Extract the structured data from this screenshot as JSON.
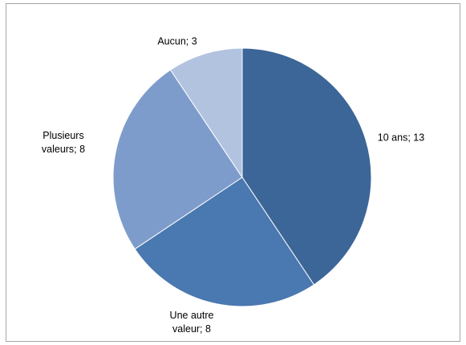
{
  "chart_data": {
    "type": "pie",
    "title": "",
    "slices": [
      {
        "label": "10 ans; 13",
        "label_lines": [
          "10 ans; 13"
        ],
        "name": "10 ans",
        "value": 13,
        "color": "#3c6697"
      },
      {
        "label": "Une autre valeur; 8",
        "label_lines": [
          "Une autre",
          "valeur; 8"
        ],
        "name": "Une autre valeur",
        "value": 8,
        "color": "#4a78b0"
      },
      {
        "label": "Plusieurs valeurs; 8",
        "label_lines": [
          "Plusieurs",
          "valeurs; 8"
        ],
        "name": "Plusieurs valeurs",
        "value": 8,
        "color": "#7e9ccb"
      },
      {
        "label": "Aucun; 3",
        "label_lines": [
          "Aucun; 3"
        ],
        "name": "Aucun",
        "value": 3,
        "color": "#b2c3e0"
      }
    ],
    "legend": "none",
    "start_angle": "12 o'clock",
    "direction": "clockwise"
  }
}
